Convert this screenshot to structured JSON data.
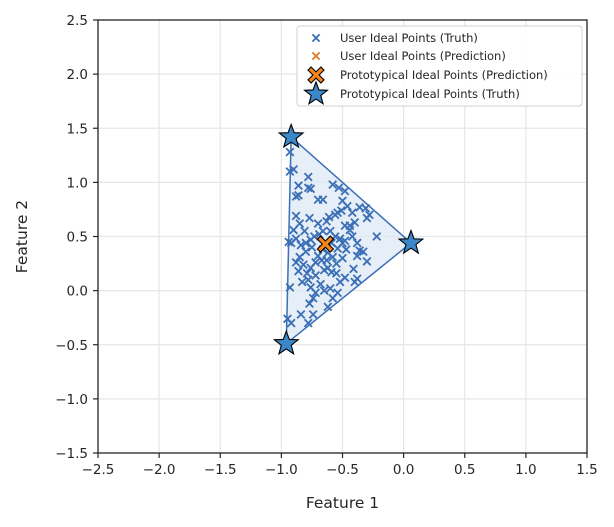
{
  "chart_data": {
    "type": "scatter",
    "title": "",
    "xlabel": "Feature 1",
    "ylabel": "Feature 2",
    "xlim": [
      -2.5,
      1.5
    ],
    "ylim": [
      -1.5,
      2.5
    ],
    "xticks": [
      -2.5,
      -2.0,
      -1.5,
      -1.0,
      -0.5,
      0.0,
      0.5,
      1.0,
      1.5
    ],
    "yticks": [
      -1.5,
      -1.0,
      -0.5,
      0.0,
      0.5,
      1.0,
      1.5,
      2.0,
      2.5
    ],
    "xtick_labels": [
      "−2.5",
      "−2.0",
      "−1.5",
      "−1.0",
      "−0.5",
      "0.0",
      "0.5",
      "1.0",
      "1.5"
    ],
    "ytick_labels": [
      "−1.5",
      "−1.0",
      "−0.5",
      "0.0",
      "0.5",
      "1.0",
      "1.5",
      "2.0",
      "2.5"
    ],
    "grid": true,
    "legend_position": "top-right",
    "colors": {
      "truth": "#3b6fb6",
      "prediction": "#e07b2a",
      "prototype_truth_fill": "#3b87c8",
      "prototype_prediction_fill": "#f58518",
      "hull_fill": "#dbe7f3",
      "grid": "#e6e6e6",
      "axes": "#262626"
    },
    "series": [
      {
        "name": "User Ideal Points (Truth)",
        "marker": "x",
        "points": [
          [
            -0.93,
            1.28
          ],
          [
            -0.9,
            1.12
          ],
          [
            -0.93,
            1.1
          ],
          [
            -0.86,
            0.97
          ],
          [
            -0.88,
            0.87
          ],
          [
            -0.86,
            0.88
          ],
          [
            -0.78,
            1.05
          ],
          [
            -0.78,
            0.95
          ],
          [
            -0.76,
            0.94
          ],
          [
            -0.7,
            0.84
          ],
          [
            -0.66,
            0.84
          ],
          [
            -0.58,
            0.98
          ],
          [
            -0.53,
            0.95
          ],
          [
            -0.48,
            0.92
          ],
          [
            -0.5,
            0.83
          ],
          [
            -0.46,
            0.78
          ],
          [
            -0.42,
            0.72
          ],
          [
            -0.36,
            0.77
          ],
          [
            -0.31,
            0.76
          ],
          [
            -0.28,
            0.7
          ],
          [
            -0.3,
            0.67
          ],
          [
            -0.54,
            0.72
          ],
          [
            -0.51,
            0.74
          ],
          [
            -0.56,
            0.7
          ],
          [
            -0.61,
            0.68
          ],
          [
            -0.63,
            0.64
          ],
          [
            -0.7,
            0.62
          ],
          [
            -0.88,
            0.69
          ],
          [
            -0.85,
            0.62
          ],
          [
            -0.81,
            0.55
          ],
          [
            -0.77,
            0.67
          ],
          [
            -0.9,
            0.56
          ],
          [
            -0.94,
            0.45
          ],
          [
            -0.92,
            0.44
          ],
          [
            -0.88,
            0.48
          ],
          [
            -0.84,
            0.42
          ],
          [
            -0.8,
            0.44
          ],
          [
            -0.76,
            0.47
          ],
          [
            -0.73,
            0.5
          ],
          [
            -0.69,
            0.52
          ],
          [
            -0.66,
            0.55
          ],
          [
            -0.6,
            0.55
          ],
          [
            -0.56,
            0.5
          ],
          [
            -0.52,
            0.48
          ],
          [
            -0.5,
            0.44
          ],
          [
            -0.48,
            0.46
          ],
          [
            -0.44,
            0.56
          ],
          [
            -0.4,
            0.63
          ],
          [
            -0.44,
            0.6
          ],
          [
            -0.48,
            0.6
          ],
          [
            -0.42,
            0.5
          ],
          [
            -0.38,
            0.44
          ],
          [
            -0.36,
            0.37
          ],
          [
            -0.33,
            0.36
          ],
          [
            -0.22,
            0.5
          ],
          [
            -0.3,
            0.27
          ],
          [
            -0.38,
            0.32
          ],
          [
            -0.41,
            0.2
          ],
          [
            -0.38,
            0.11
          ],
          [
            -0.4,
            0.08
          ],
          [
            -0.48,
            0.12
          ],
          [
            -0.52,
            0.08
          ],
          [
            -0.55,
            0.16
          ],
          [
            -0.55,
            0.25
          ],
          [
            -0.58,
            0.31
          ],
          [
            -0.62,
            0.35
          ],
          [
            -0.66,
            0.38
          ],
          [
            -0.7,
            0.32
          ],
          [
            -0.72,
            0.26
          ],
          [
            -0.76,
            0.21
          ],
          [
            -0.79,
            0.16
          ],
          [
            -0.82,
            0.24
          ],
          [
            -0.85,
            0.31
          ],
          [
            -0.88,
            0.26
          ],
          [
            -0.86,
            0.18
          ],
          [
            -0.78,
            0.1
          ],
          [
            -0.76,
            0.03
          ],
          [
            -0.74,
            -0.07
          ],
          [
            -0.77,
            -0.12
          ],
          [
            -0.72,
            -0.02
          ],
          [
            -0.68,
            0.06
          ],
          [
            -0.65,
            0.0
          ],
          [
            -0.6,
            0.02
          ],
          [
            -0.58,
            -0.07
          ],
          [
            -0.54,
            -0.02
          ],
          [
            -0.65,
            0.19
          ],
          [
            -0.62,
            0.21
          ],
          [
            -0.59,
            0.17
          ],
          [
            -0.67,
            0.28
          ],
          [
            -0.63,
            0.28
          ],
          [
            -0.5,
            0.3
          ],
          [
            -0.47,
            0.38
          ],
          [
            -0.54,
            0.39
          ],
          [
            -0.59,
            0.44
          ],
          [
            -0.75,
            0.4
          ],
          [
            -0.93,
            0.03
          ],
          [
            -0.95,
            -0.26
          ],
          [
            -0.92,
            -0.3
          ],
          [
            -0.84,
            -0.22
          ],
          [
            -0.78,
            -0.3
          ],
          [
            -0.74,
            -0.22
          ],
          [
            -0.62,
            -0.15
          ],
          [
            -0.83,
            0.08
          ],
          [
            -0.72,
            0.14
          ],
          [
            -0.8,
            0.36
          ]
        ]
      },
      {
        "name": "User Ideal Points (Prediction)",
        "marker": "x",
        "points": []
      },
      {
        "name": "Prototypical Ideal Points (Prediction)",
        "marker": "X",
        "points": [
          [
            -0.64,
            0.43
          ]
        ]
      },
      {
        "name": "Prototypical Ideal Points (Truth)",
        "marker": "star",
        "points": [
          [
            -0.92,
            1.42
          ],
          [
            0.06,
            0.44
          ],
          [
            -0.96,
            -0.49
          ]
        ]
      }
    ]
  }
}
